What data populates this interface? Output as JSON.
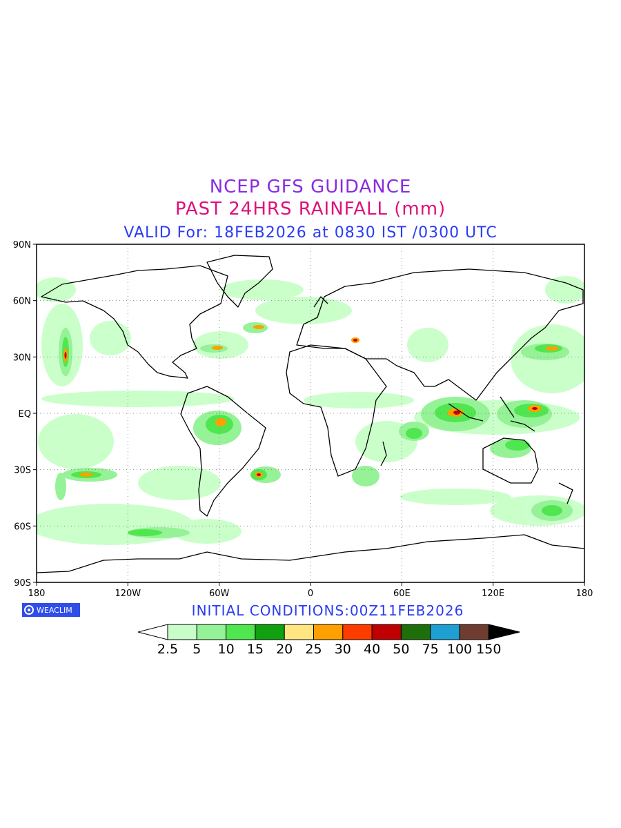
{
  "header": {
    "line1": "NCEP GFS GUIDANCE",
    "line2": "PAST 24HRS RAINFALL (mm)",
    "line3": "VALID For: 18FEB2026 at 0830 IST /0300 UTC"
  },
  "axes": {
    "lat_labels": [
      "90N",
      "60N",
      "30N",
      "EQ",
      "30S",
      "60S",
      "90S"
    ],
    "lon_labels": [
      "180",
      "120W",
      "60W",
      "0",
      "60E",
      "120E",
      "180"
    ]
  },
  "footer": {
    "badge_text": "WEACLIM",
    "initial_conditions": "INITIAL CONDITIONS:00Z11FEB2026"
  },
  "legend": {
    "colors": [
      "#c8ffc8",
      "#96f296",
      "#50e650",
      "#10a010",
      "#ffe680",
      "#ffa000",
      "#ff3c00",
      "#c00000",
      "#1e6e0a",
      "#1ea0d2",
      "#6e3c30"
    ],
    "labels": [
      "2.5",
      "5",
      "10",
      "15",
      "20",
      "25",
      "30",
      "40",
      "50",
      "75",
      "100",
      "150"
    ],
    "under_color": "#ffffff",
    "over_color": "#000000"
  }
}
